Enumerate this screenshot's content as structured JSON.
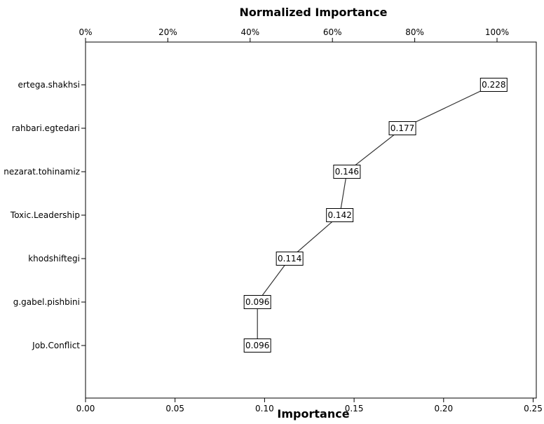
{
  "chart_data": {
    "type": "line",
    "title": "Normalized Importance",
    "xlabel": "Importance",
    "xlim": [
      0.0,
      0.25
    ],
    "x_ticks": [
      "0.00",
      "0.05",
      "0.10",
      "0.15",
      "0.20",
      "0.25"
    ],
    "top_axis_ticks": [
      "0%",
      "20%",
      "40%",
      "60%",
      "80%",
      "100%"
    ],
    "categories": [
      "ertega.shakhsi",
      "rahbari.egtedari",
      "nezarat.tohinamiz",
      "Toxic.Leadership",
      "khodshiftegi",
      "g.gabel.pishbini",
      "Job.Conflict"
    ],
    "values": [
      0.228,
      0.177,
      0.146,
      0.142,
      0.114,
      0.096,
      0.096
    ],
    "value_labels": [
      "0.228",
      "0.177",
      "0.146",
      "0.142",
      "0.114",
      "0.096",
      "0.096"
    ],
    "grid": false
  }
}
